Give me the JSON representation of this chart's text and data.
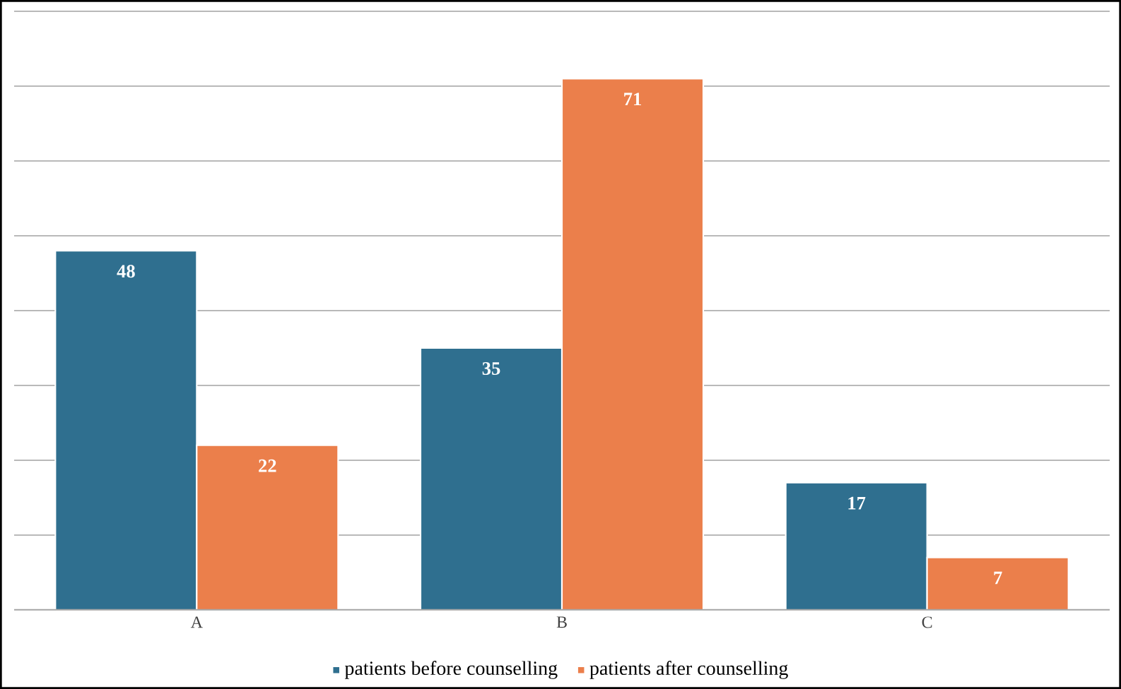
{
  "chart_data": {
    "type": "bar",
    "categories": [
      "A",
      "B",
      "C"
    ],
    "series": [
      {
        "name": "patients before counselling",
        "color": "#2f6f8f",
        "values": [
          48,
          35,
          17
        ]
      },
      {
        "name": "patients after counselling",
        "color": "#eb7f4b",
        "values": [
          22,
          71,
          7
        ]
      }
    ],
    "ylim": [
      0,
      80
    ],
    "yticks": [
      {
        "value": 0,
        "label": null
      },
      {
        "value": 10,
        "label": null
      },
      {
        "value": 20,
        "label": null
      },
      {
        "value": 30,
        "label": null
      },
      {
        "value": 40,
        "label": null
      },
      {
        "value": 50,
        "label": null
      },
      {
        "value": 60,
        "label": null
      },
      {
        "value": 70,
        "label": null
      },
      {
        "value": 80,
        "label": null
      }
    ],
    "grid": "y",
    "tick_labels": "x",
    "data_labels": true,
    "legend": "bottom"
  }
}
